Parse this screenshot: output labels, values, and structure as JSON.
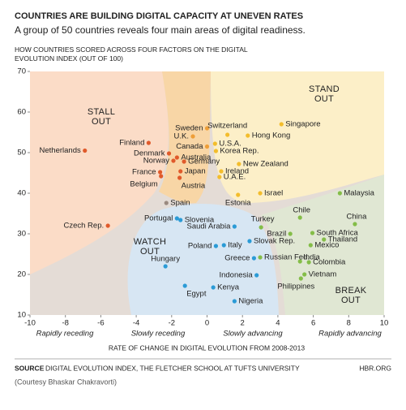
{
  "chart_data": {
    "type": "scatter",
    "title": "COUNTRIES ARE BUILDING DIGITAL CAPACITY AT UNEVEN RATES",
    "subtitle": "A group of 50 countries reveals four main areas of digital readiness.",
    "y_label": "HOW COUNTRIES SCORED ACROSS FOUR FACTORS ON THE DIGITAL EVOLUTION INDEX (OUT OF 100)",
    "x_label": "RATE OF CHANGE IN DIGITAL EVOLUTION FROM 2008-2013",
    "x_zone_labels": [
      "Rapidly receding",
      "Slowly receding",
      "Slowly advancing",
      "Rapidly advancing"
    ],
    "zones": [
      {
        "label": "STALL OUT"
      },
      {
        "label": "STAND OUT"
      },
      {
        "label": "WATCH OUT"
      },
      {
        "label": "BREAK OUT"
      }
    ],
    "xlim": [
      -10,
      10
    ],
    "xticks": [
      -10,
      -8,
      -6,
      -4,
      -2,
      0,
      2,
      4,
      6,
      8,
      10
    ],
    "ylim": [
      10,
      70
    ],
    "yticks": [
      10,
      20,
      30,
      40,
      50,
      60,
      70
    ],
    "points": [
      {
        "label": "Netherlands",
        "x": -6.9,
        "y": 50.5,
        "color": "#e05a2b"
      },
      {
        "label": "Finland",
        "x": -3.3,
        "y": 52.4,
        "color": "#e05a2b"
      },
      {
        "label": "Denmark",
        "x": -2.15,
        "y": 49.8,
        "color": "#e05a2b"
      },
      {
        "label": "Norway",
        "x": -1.9,
        "y": 48,
        "color": "#e05a2b"
      },
      {
        "label": "Australia",
        "x": -1.7,
        "y": 48.8,
        "color": "#e05a2b"
      },
      {
        "label": "Germany",
        "x": -1.3,
        "y": 47.8,
        "color": "#e05a2b"
      },
      {
        "label": "France",
        "x": -2.65,
        "y": 45.2,
        "color": "#e05a2b"
      },
      {
        "label": "Japan",
        "x": -1.5,
        "y": 45.4,
        "color": "#e05a2b"
      },
      {
        "label": "Belgium",
        "x": -2.6,
        "y": 44.2,
        "color": "#e05a2b"
      },
      {
        "label": "Austria",
        "x": -1.55,
        "y": 43.8,
        "color": "#e05a2b"
      },
      {
        "label": "Czech Rep.",
        "x": -5.6,
        "y": 32,
        "color": "#e05a2b"
      },
      {
        "label": "Spain",
        "x": -2.3,
        "y": 37.6,
        "color": "#9a8a80"
      },
      {
        "label": "Sweden",
        "x": 0,
        "y": 56,
        "color": "#ee9e38"
      },
      {
        "label": "U.K.",
        "x": -0.8,
        "y": 54,
        "color": "#ee9e38"
      },
      {
        "label": "Canada",
        "x": 0,
        "y": 51.5,
        "color": "#ee9e38"
      },
      {
        "label": "Switzerland",
        "x": 1.15,
        "y": 54.4,
        "color": "#f3bd2c"
      },
      {
        "label": "U.S.A.",
        "x": 0.45,
        "y": 52.2,
        "color": "#f3bd2c"
      },
      {
        "label": "Hong Kong",
        "x": 2.3,
        "y": 54.2,
        "color": "#f3bd2c"
      },
      {
        "label": "Singapore",
        "x": 4.2,
        "y": 57,
        "color": "#f3bd2c"
      },
      {
        "label": "Korea Rep.",
        "x": 0.5,
        "y": 50.4,
        "color": "#f3bd2c"
      },
      {
        "label": "New Zealand",
        "x": 1.8,
        "y": 47.2,
        "color": "#f3bd2c"
      },
      {
        "label": "Ireland",
        "x": 0.8,
        "y": 45.4,
        "color": "#f3bd2c"
      },
      {
        "label": "U.A.E.",
        "x": 0.7,
        "y": 44,
        "color": "#f3bd2c"
      },
      {
        "label": "Estonia",
        "x": 1.75,
        "y": 39.6,
        "color": "#f3bd2c"
      },
      {
        "label": "Israel",
        "x": 3,
        "y": 40,
        "color": "#f3bd2c"
      },
      {
        "label": "Portugal",
        "x": -1.7,
        "y": 33.8,
        "color": "#2b9bd6"
      },
      {
        "label": "Slovenia",
        "x": -1.5,
        "y": 33.4,
        "color": "#2b9bd6"
      },
      {
        "label": "Saudi Arabia",
        "x": 1.55,
        "y": 31.8,
        "color": "#2b9bd6"
      },
      {
        "label": "Poland",
        "x": 0.5,
        "y": 27,
        "color": "#2b9bd6"
      },
      {
        "label": "Italy",
        "x": 0.95,
        "y": 27.2,
        "color": "#2b9bd6"
      },
      {
        "label": "Slovak Rep.",
        "x": 2.4,
        "y": 28.2,
        "color": "#2b9bd6"
      },
      {
        "label": "Hungary",
        "x": -2.35,
        "y": 22,
        "color": "#2b9bd6"
      },
      {
        "label": "Greece",
        "x": 2.65,
        "y": 24,
        "color": "#2b9bd6"
      },
      {
        "label": "Indonesia",
        "x": 2.8,
        "y": 19.8,
        "color": "#2b9bd6"
      },
      {
        "label": "Egypt",
        "x": -1.25,
        "y": 17.2,
        "color": "#2b9bd6"
      },
      {
        "label": "Kenya",
        "x": 0.35,
        "y": 16.8,
        "color": "#2b9bd6"
      },
      {
        "label": "Nigeria",
        "x": 1.55,
        "y": 13.4,
        "color": "#2b9bd6"
      },
      {
        "label": "Malaysia",
        "x": 7.5,
        "y": 40,
        "color": "#84bd48"
      },
      {
        "label": "Chile",
        "x": 5.25,
        "y": 34,
        "color": "#84bd48"
      },
      {
        "label": "China",
        "x": 8.35,
        "y": 32.4,
        "color": "#84bd48"
      },
      {
        "label": "Turkey",
        "x": 3.05,
        "y": 31.6,
        "color": "#84bd48"
      },
      {
        "label": "South Africa",
        "x": 5.95,
        "y": 30.2,
        "color": "#84bd48"
      },
      {
        "label": "Brazil",
        "x": 4.7,
        "y": 30,
        "color": "#84bd48"
      },
      {
        "label": "Thailand",
        "x": 6.6,
        "y": 28.6,
        "color": "#84bd48"
      },
      {
        "label": "Mexico",
        "x": 5.85,
        "y": 27.2,
        "color": "#84bd48"
      },
      {
        "label": "India",
        "x": 5.25,
        "y": 23.2,
        "color": "#84bd48"
      },
      {
        "label": "Russian Fed.",
        "x": 3,
        "y": 24.2,
        "color": "#84bd48"
      },
      {
        "label": "Colombia",
        "x": 5.75,
        "y": 23,
        "color": "#84bd48"
      },
      {
        "label": "Vietnam",
        "x": 5.5,
        "y": 20,
        "color": "#84bd48"
      },
      {
        "label": "Philippines",
        "x": 5.3,
        "y": 19,
        "color": "#84bd48"
      }
    ]
  },
  "footer": {
    "source_label": "SOURCE",
    "source": "DIGITAL EVOLUTION INDEX, THE FLETCHER SCHOOL AT TUFTS UNIVERSITY",
    "site": "HBR.ORG",
    "credit": "(Courtesy Bhaskar Chakravorti)"
  }
}
